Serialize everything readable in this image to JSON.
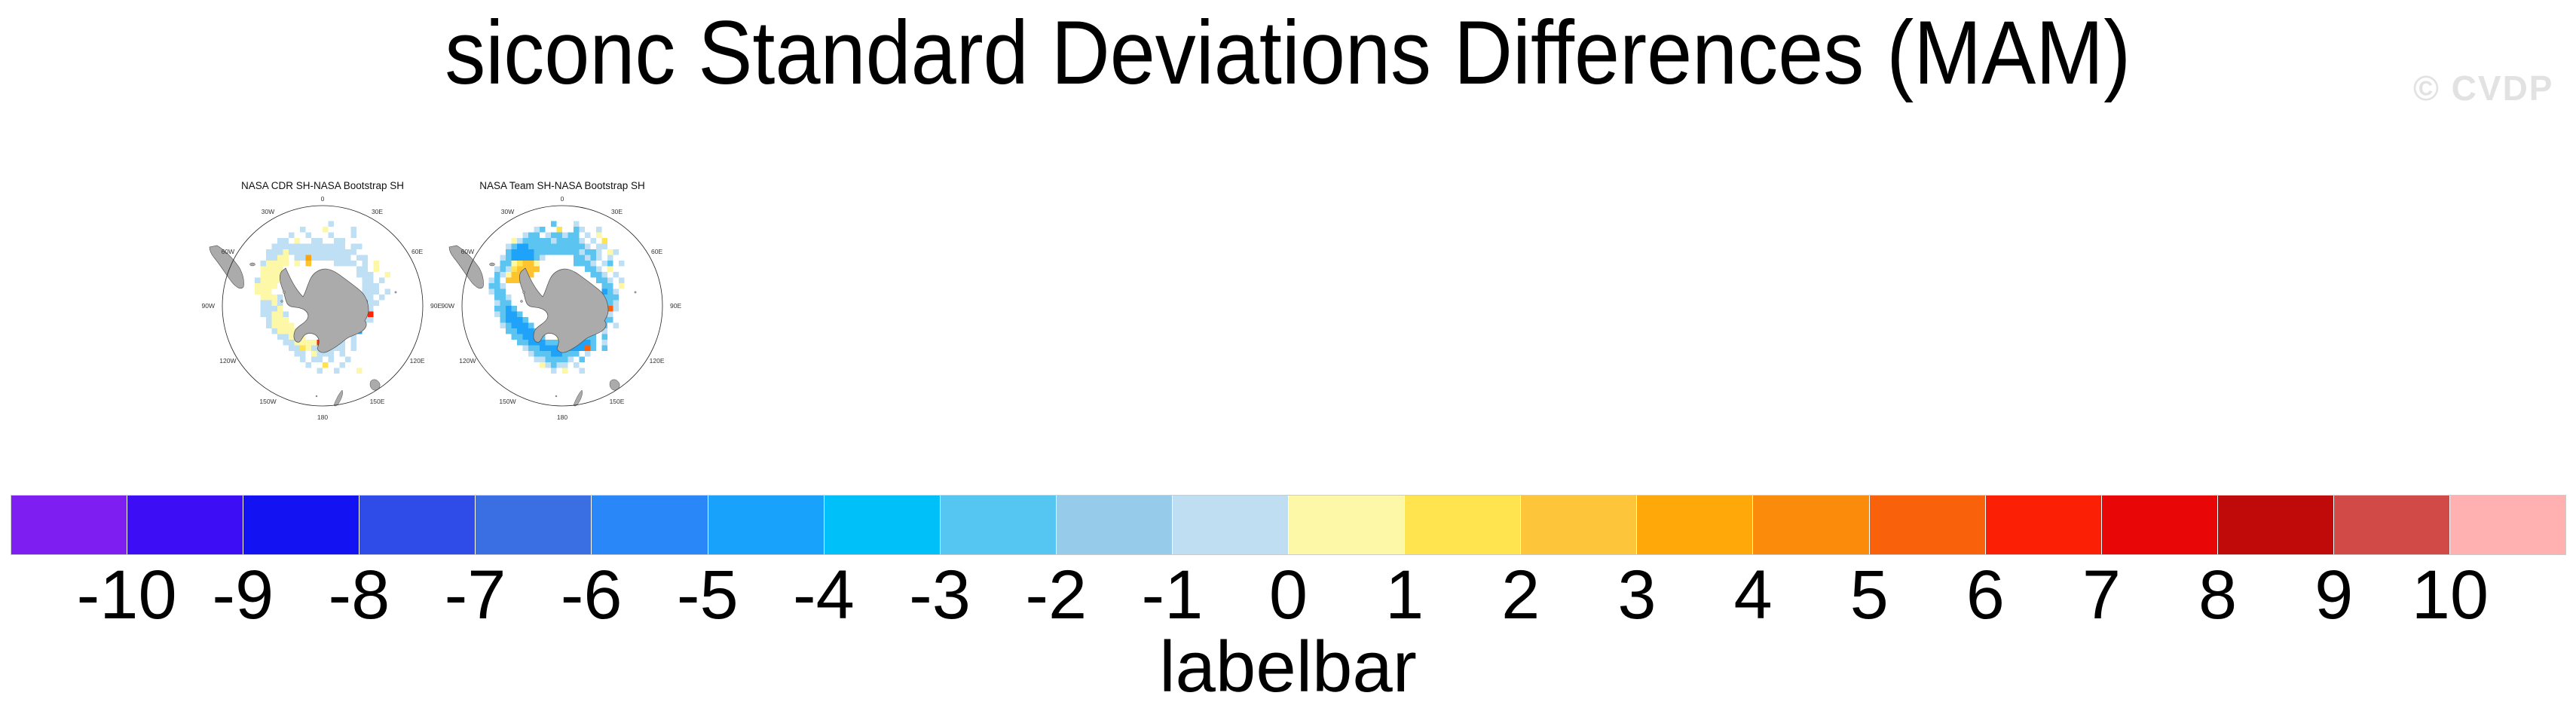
{
  "title": "siconc Standard Deviations Differences (MAM)",
  "watermark": "© CVDP",
  "chart_data": {
    "type": "heatmap",
    "projection": "south polar stereographic",
    "variable": "siconc standard deviation difference",
    "season": "MAM",
    "panels": [
      {
        "title": "NASA CDR SH-NASA Bootstrap SH",
        "grid": [
          "....................................",
          "....................................",
          "....................................",
          "...................l................",
          "..............l...y....l............",
          "............l..l...l...l............",
          "..........ll.y..ll..ll..............",
          ".........lllllllllllll.ll...........",
          "........lllyllllllllllll............",
          "........llyy.llolllllll.ll..........",
          ".......lyyyy.y.g....llll.l.y........",
          ".......yyyy.............ll.y........",
          ".......yyyy.............lll..y......",
          "......lyyyy..............ll.l.......",
          "......yyyy...............lll........",
          "......yyy................lll.l......",
          ".......yyyl..............ll.l.......",
          ".......llyl..............all........",
          ".......llly..............ll.........",
          ".......llyyl............llR.........",
          "........lyyy............yll.........",
          "........lyyyy........yyl............",
          ".........lyyyy......yyl.a...........",
          "..........llyyy...yyll.l............",
          "...........llyyyyRylll.l............",
          "............llYyllllll.l............",
          ".............ll.ylll.l..............",
          "..............l.ll.l..l.............",
          "...............l..Y..l..............",
          ".................l..l...y...........",
          "....................................",
          "...................................."
        ]
      },
      {
        "title": "NASA Team SH-NASA Bootstrap SH",
        "grid": [
          "....................................",
          "....................................",
          "....................................",
          "................c...l...............",
          ".............lc..Y..cl..l...........",
          "...........lcc.lcclcc.l.y...........",
          ".........ylccccclccccl.l.Y..........",
          "........lcaaccccccccccl.ll..........",
          "........caaaacccccccclccl.yl........",
          ".......lcaaaacl.....cclcl.l.........",
          ".......ccyYggy......cccl.lc.l.......",
          "......lclYgggg........ccl.y.........",
          "......clygggg..........ccl.l........",
          ".....lc.ggg.............ccl.l.......",
          ".....ccl.................cc.y.......",
          ".....lcc.................acl........",
          "......ccl................ccc........",
          "......lcc................ccl........",
          "......ccac...............crl........",
          "......lcaac.............ccl.........",
          ".......caaac............ccc.........",
          ".......lcaaac........c..cc.l........",
          "........ccaaac......cccc.l..........",
          ".........ccaaac..y..aacc.c..........",
          "..........ccaaacccccaaac.l..........",
          "...........lccaaaaaaaarc.c..........",
          "............lcccaaccc.l.............",
          ".............llccccl.c..............",
          "..............ylcll.l...............",
          "................l.y..l..............",
          "....................................",
          "...................................."
        ]
      }
    ],
    "lon_labels": [
      "0",
      "30E",
      "60E",
      "90E",
      "120E",
      "150E",
      "180",
      "150W",
      "120W",
      "90W",
      "60W",
      "30W"
    ],
    "labelbar": {
      "caption": "labelbar",
      "tick_labels": [
        "-10",
        "-9",
        "-8",
        "-7",
        "-6",
        "-5",
        "-4",
        "-3",
        "-2",
        "-1",
        "0",
        "1",
        "2",
        "3",
        "4",
        "5",
        "6",
        "7",
        "8",
        "9",
        "10"
      ],
      "colors": [
        "#7f1ef0",
        "#3d0df5",
        "#1212f2",
        "#2f4ce8",
        "#3a6fe3",
        "#2a87f7",
        "#19a2fb",
        "#00c0fa",
        "#55c5f2",
        "#96cbe9",
        "#bfdef2",
        "#fdf7a8",
        "#ffe34f",
        "#fdc63a",
        "#ffa809",
        "#fb8b0a",
        "#f9610a",
        "#fb2005",
        "#e80607",
        "#c00a0a",
        "#d24a48",
        "#ffb1b1"
      ],
      "range_min": -10,
      "range_max": 10
    },
    "cell_palette": {
      "l": "#bfe0f4",
      "c": "#5bc4f0",
      "a": "#1ea2fa",
      "y": "#fdf7a8",
      "Y": "#ffe34f",
      "g": "#fdc430",
      "o": "#f8a40e",
      "r": "#f9610a",
      "R": "#fb2505"
    },
    "land_color": "#ababab",
    "coast_color": "#4d4d4d"
  }
}
